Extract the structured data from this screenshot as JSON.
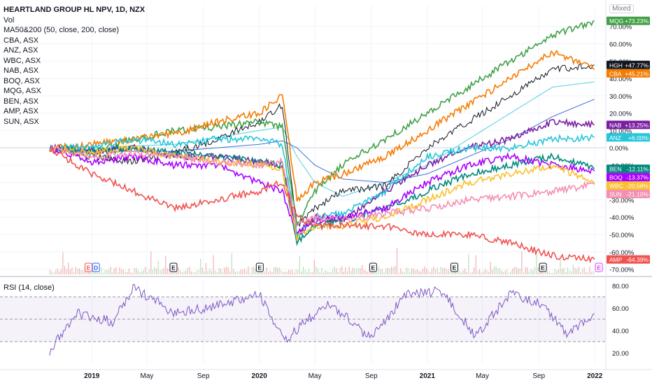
{
  "legend": {
    "title": "HEARTLAND GROUP HL NPV, 1D, NZX",
    "lines": [
      "Vol",
      "MA50&200 (50, close, 200, close)",
      "CBA, ASX",
      "ANZ, ASX",
      "WBC, ASX",
      "NAB, ASX",
      "BOQ, ASX",
      "MQG, ASX",
      "BEN, ASX",
      "AMP, ASX",
      "SUN, ASX"
    ]
  },
  "scale_mode": "Mixed",
  "rsi_title": "RSI (14, close)",
  "colors": {
    "HGH": "#131722",
    "MQG": "#43a047",
    "CBA": "#f57c00",
    "NAB": "#7b1fa2",
    "ANZ": "#26c6da",
    "BEN": "#00897b",
    "BOQ": "#aa00ff",
    "WBC": "#fbc02d",
    "SUN": "#f48fb1",
    "AMP": "#ef5350",
    "MA50": "#4dd0e1",
    "MA200": "#3f6fd6",
    "RSI": "#7e57c2"
  },
  "chart_data": [
    {
      "type": "line",
      "y_unit": "%",
      "ylim": [
        -73,
        82
      ],
      "y_ticks": [
        "70.00%",
        "60.00%",
        "50.00%",
        "40.00%",
        "30.00%",
        "20.00%",
        "10.00%",
        "0.00%",
        "-10.00%",
        "-20.00%",
        "-30.00%",
        "-40.00%",
        "-50.00%",
        "-60.00%",
        "-70.00%"
      ],
      "y_tick_values": [
        70,
        60,
        50,
        40,
        30,
        20,
        10,
        0,
        -10,
        -20,
        -30,
        -40,
        -50,
        -60,
        -70
      ],
      "x": [
        "2018-10-01",
        "2019-01-01",
        "2019-04-01",
        "2019-07-01",
        "2019-10-01",
        "2020-01-01",
        "2020-02-20",
        "2020-03-23",
        "2020-05-01",
        "2020-07-01",
        "2020-10-01",
        "2021-01-01",
        "2021-04-01",
        "2021-07-01",
        "2021-10-01",
        "2021-12-31"
      ],
      "series": [
        {
          "name": "HGH",
          "label": "+47.77%",
          "values": [
            0,
            -5,
            -8,
            -3,
            5,
            15,
            25,
            -45,
            -35,
            -25,
            -22,
            0,
            15,
            30,
            45,
            47.77
          ]
        },
        {
          "name": "MQG",
          "label": "+73.23%",
          "values": [
            0,
            -3,
            5,
            10,
            12,
            15,
            12,
            -45,
            -25,
            -10,
            5,
            20,
            35,
            50,
            65,
            73.23
          ]
        },
        {
          "name": "CBA",
          "label": "+45.21%",
          "values": [
            0,
            2,
            5,
            8,
            15,
            20,
            30,
            -30,
            -20,
            -15,
            -5,
            10,
            25,
            40,
            55,
            45.21
          ]
        },
        {
          "name": "NAB",
          "label": "+13.25%",
          "values": [
            0,
            -2,
            0,
            -5,
            -5,
            -8,
            -10,
            -50,
            -40,
            -42,
            -25,
            -10,
            0,
            5,
            15,
            13.25
          ]
        },
        {
          "name": "ANZ",
          "label": "+6.00%",
          "values": [
            0,
            0,
            5,
            2,
            5,
            5,
            2,
            -50,
            -40,
            -38,
            -25,
            -5,
            0,
            0,
            5,
            6
          ]
        },
        {
          "name": "BEN",
          "label": "-12.11%",
          "values": [
            0,
            -2,
            0,
            -3,
            -5,
            -8,
            -10,
            -55,
            -45,
            -42,
            -35,
            -25,
            -15,
            -10,
            -5,
            -12.11
          ]
        },
        {
          "name": "BOQ",
          "label": "-13.37%",
          "values": [
            0,
            -8,
            -5,
            -10,
            -10,
            -20,
            -25,
            -50,
            -42,
            -40,
            -35,
            -20,
            -10,
            -5,
            -10,
            -13.37
          ]
        },
        {
          "name": "WBC",
          "label": "-20.58%",
          "values": [
            0,
            -3,
            0,
            -5,
            -8,
            -10,
            -12,
            -52,
            -45,
            -45,
            -40,
            -30,
            -20,
            -15,
            -10,
            -20.58
          ]
        },
        {
          "name": "SUN",
          "label": "-21.10%",
          "values": [
            0,
            -5,
            -3,
            -5,
            -8,
            -10,
            -8,
            -45,
            -40,
            -42,
            -38,
            -35,
            -30,
            -28,
            -25,
            -21.1
          ]
        },
        {
          "name": "AMP",
          "label": "-64.39%",
          "values": [
            0,
            -15,
            -25,
            -35,
            -30,
            -25,
            -20,
            -40,
            -45,
            -45,
            -45,
            -50,
            -50,
            -55,
            -62,
            -64.39
          ]
        }
      ],
      "ma_lines": [
        {
          "values": [
            0,
            -1,
            1,
            2,
            6,
            10,
            12,
            -5,
            -20,
            -28,
            -20,
            -10,
            5,
            20,
            35,
            38
          ]
        },
        {
          "values": [
            0,
            -2,
            -2,
            -2,
            0,
            2,
            4,
            0,
            -10,
            -18,
            -20,
            -15,
            -5,
            5,
            18,
            28
          ]
        }
      ],
      "x_ticks": [
        "2019",
        "May",
        "Sep",
        "2020",
        "May",
        "Sep",
        "2021",
        "May",
        "Sep",
        "2022"
      ],
      "x_tick_dates": [
        "2019-01-01",
        "2019-05-01",
        "2019-09-01",
        "2020-01-01",
        "2020-05-01",
        "2020-09-01",
        "2021-01-01",
        "2021-05-01",
        "2021-09-01",
        "2022-01-01"
      ],
      "event_markers": [
        {
          "letter": "E",
          "date": "2018-12-25",
          "color": "#ef5350"
        },
        {
          "letter": "D",
          "date": "2019-01-10",
          "color": "#2962ff"
        },
        {
          "letter": "E",
          "date": "2019-06-28",
          "color": "#131722"
        },
        {
          "letter": "E",
          "date": "2020-01-02",
          "color": "#131722"
        },
        {
          "letter": "E",
          "date": "2020-09-05",
          "color": "#131722"
        },
        {
          "letter": "E",
          "date": "2021-03-01",
          "color": "#131722"
        },
        {
          "letter": "E",
          "date": "2021-09-10",
          "color": "#131722"
        },
        {
          "letter": "E",
          "date": "2022-01-10",
          "color": "#e040fb"
        }
      ]
    },
    {
      "type": "line",
      "title": "RSI (14, close)",
      "ylim": [
        10,
        85
      ],
      "y_ticks": [
        "80.00",
        "60.00",
        "40.00",
        "20.00"
      ],
      "y_tick_values": [
        80,
        60,
        40,
        20
      ],
      "band": [
        30,
        70
      ],
      "x": [
        "2018-10-01",
        "2018-12-01",
        "2019-02-15",
        "2019-04-01",
        "2019-07-01",
        "2019-10-01",
        "2020-01-01",
        "2020-02-25",
        "2020-04-01",
        "2020-06-01",
        "2020-09-01",
        "2020-11-15",
        "2021-02-01",
        "2021-04-15",
        "2021-07-01",
        "2021-09-01",
        "2021-11-01",
        "2021-12-31"
      ],
      "values": [
        22,
        55,
        48,
        78,
        55,
        62,
        72,
        30,
        45,
        65,
        32,
        72,
        75,
        35,
        72,
        65,
        38,
        55
      ]
    }
  ]
}
